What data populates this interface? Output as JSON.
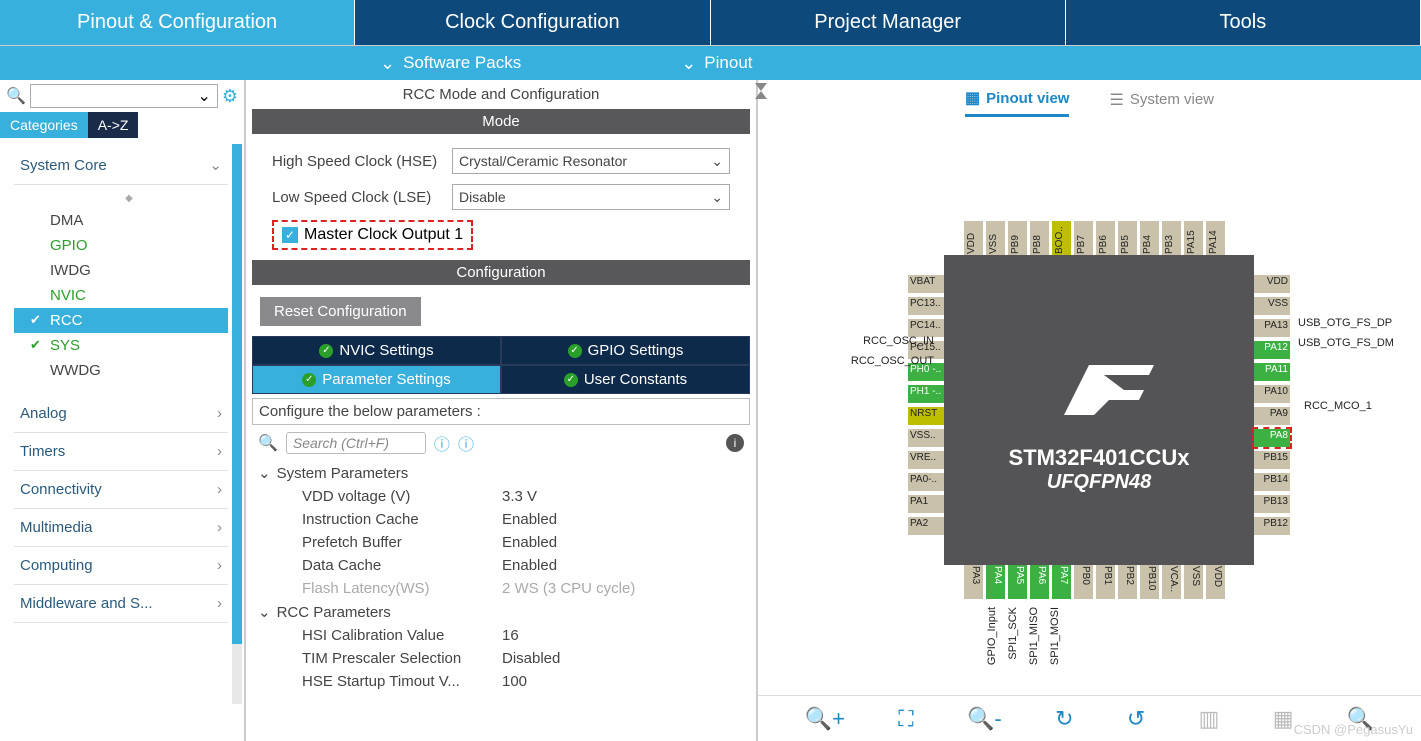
{
  "tabs": {
    "pinout": "Pinout & Configuration",
    "clock": "Clock Configuration",
    "project": "Project Manager",
    "tools": "Tools"
  },
  "subbar": {
    "packs": "Software Packs",
    "pinout": "Pinout"
  },
  "left": {
    "catTab": "Categories",
    "azTab": "A->Z",
    "groups": {
      "system": "System Core",
      "analog": "Analog",
      "timers": "Timers",
      "conn": "Connectivity",
      "mm": "Multimedia",
      "comp": "Computing",
      "mw": "Middleware and S..."
    },
    "items": {
      "dma": "DMA",
      "gpio": "GPIO",
      "iwdg": "IWDG",
      "nvic": "NVIC",
      "rcc": "RCC",
      "sys": "SYS",
      "wwdg": "WWDG"
    }
  },
  "mid": {
    "title": "RCC Mode and Configuration",
    "modeHdr": "Mode",
    "hseLabel": "High Speed Clock (HSE)",
    "hseVal": "Crystal/Ceramic Resonator",
    "lseLabel": "Low Speed Clock (LSE)",
    "lseVal": "Disable",
    "mcoLabel": "Master Clock Output 1",
    "cfgHdr": "Configuration",
    "resetBtn": "Reset Configuration",
    "cfgTabs": {
      "nvic": "NVIC Settings",
      "gpio": "GPIO Settings",
      "param": "Parameter Settings",
      "user": "User Constants"
    },
    "paramHdr": "Configure the below parameters :",
    "searchPh": "Search (Ctrl+F)",
    "grpSys": "System Parameters",
    "grpRcc": "RCC Parameters",
    "p": {
      "vddK": "VDD voltage (V)",
      "vddV": "3.3 V",
      "icK": "Instruction Cache",
      "icV": "Enabled",
      "pbK": "Prefetch Buffer",
      "pbV": "Enabled",
      "dcK": "Data Cache",
      "dcV": "Enabled",
      "flK": "Flash Latency(WS)",
      "flV": "2 WS (3 CPU cycle)",
      "hsiK": "HSI Calibration Value",
      "hsiV": "16",
      "timK": "TIM Prescaler Selection",
      "timV": "Disabled",
      "hseK": "HSE Startup Timout V...",
      "hseV": "100"
    }
  },
  "right": {
    "pinoutView": "Pinout view",
    "sysView": "System view",
    "chipName": "STM32F401CCUx",
    "chipPkg": "UFQFPN48",
    "pinsLeft": [
      "VBAT",
      "PC13..",
      "PC14..",
      "PC15..",
      "PH0 -..",
      "PH1 -..",
      "NRST",
      "VSS..",
      "VRE..",
      "PA0-..",
      "PA1",
      "PA2"
    ],
    "pinsRight": [
      "VDD",
      "VSS",
      "PA13",
      "PA12",
      "PA11",
      "PA10",
      "PA9",
      "PA8",
      "PB15",
      "PB14",
      "PB13",
      "PB12"
    ],
    "pinsTop": [
      "VDD",
      "VSS",
      "PB9",
      "PB8",
      "BOO..",
      "PB7",
      "PB6",
      "PB5",
      "PB4",
      "PB3",
      "PA15",
      "PA14"
    ],
    "pinsBot": [
      "PA3",
      "PA4",
      "PA5",
      "PA6",
      "PA7",
      "PB0",
      "PB1",
      "PB2",
      "PB10",
      "VCA..",
      "VSS",
      "VDD"
    ],
    "lblL1": "RCC_OSC_IN",
    "lblL2": "RCC_OSC_OUT",
    "lblR1": "USB_OTG_FS_DP",
    "lblR2": "USB_OTG_FS_DM",
    "lblR3": "RCC_MCO_1",
    "lblB1": "GPIO_Input",
    "lblB2": "SPI1_SCK",
    "lblB3": "SPI1_MISO",
    "lblB4": "SPI1_MOSI"
  },
  "watermark": "CSDN @PegasusYu"
}
